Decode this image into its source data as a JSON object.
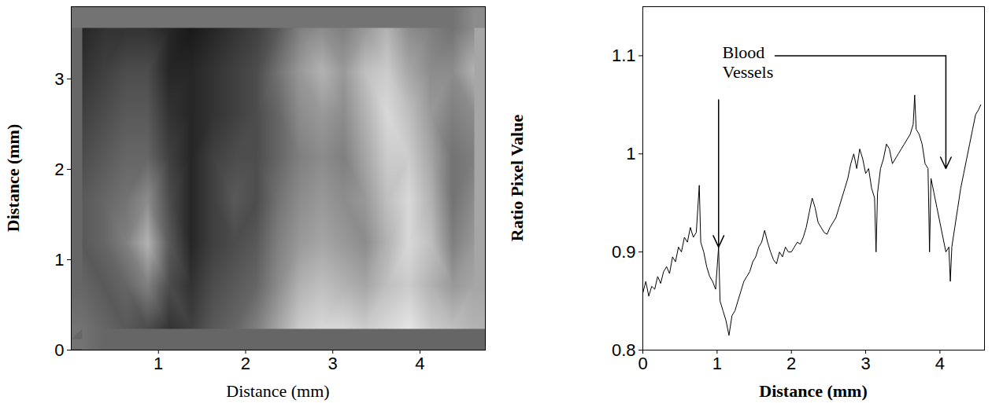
{
  "chart_data": [
    {
      "type": "heatmap",
      "xlabel": "Distance (mm)",
      "ylabel": "Distance (mm)",
      "xlim": [
        0,
        4.75
      ],
      "xticks": [
        1,
        2,
        3,
        4
      ],
      "ylim": [
        0,
        3.8
      ],
      "yticks": [
        0,
        1,
        2,
        3
      ],
      "zlim": [
        0,
        1
      ],
      "colors": [
        "#000000",
        "#ffffff"
      ],
      "x": [
        0.125,
        0.375,
        0.625,
        0.875,
        1.125,
        1.375,
        1.625,
        1.875,
        2.125,
        2.375,
        2.625,
        2.875,
        3.125,
        3.375,
        3.625,
        3.875,
        4.125,
        4.375,
        4.625
      ],
      "y": [
        0.2375,
        0.7125,
        1.1875,
        1.6625,
        2.1375,
        2.6125,
        3.0875,
        3.5625
      ],
      "z": [
        [
          0.45,
          0.4,
          0.35,
          0.3,
          0.2,
          0.25,
          0.35,
          0.4,
          0.5,
          0.65,
          0.8,
          0.85,
          0.85,
          0.8,
          0.85,
          0.9,
          0.8,
          0.75,
          0.7
        ],
        [
          0.4,
          0.35,
          0.4,
          0.5,
          0.3,
          0.2,
          0.3,
          0.35,
          0.4,
          0.55,
          0.7,
          0.75,
          0.7,
          0.65,
          0.75,
          0.8,
          0.7,
          0.6,
          0.65
        ],
        [
          0.35,
          0.4,
          0.5,
          0.7,
          0.35,
          0.15,
          0.25,
          0.3,
          0.35,
          0.5,
          0.6,
          0.65,
          0.6,
          0.55,
          0.7,
          0.85,
          0.75,
          0.5,
          0.6
        ],
        [
          0.35,
          0.4,
          0.45,
          0.55,
          0.3,
          0.15,
          0.25,
          0.35,
          0.3,
          0.45,
          0.55,
          0.6,
          0.55,
          0.6,
          0.75,
          0.85,
          0.7,
          0.45,
          0.55
        ],
        [
          0.3,
          0.35,
          0.4,
          0.4,
          0.25,
          0.15,
          0.25,
          0.3,
          0.3,
          0.4,
          0.5,
          0.55,
          0.5,
          0.65,
          0.8,
          0.8,
          0.65,
          0.45,
          0.5
        ],
        [
          0.25,
          0.3,
          0.35,
          0.35,
          0.2,
          0.15,
          0.2,
          0.25,
          0.3,
          0.4,
          0.55,
          0.6,
          0.55,
          0.7,
          0.85,
          0.75,
          0.6,
          0.5,
          0.55
        ],
        [
          0.2,
          0.25,
          0.3,
          0.3,
          0.15,
          0.15,
          0.2,
          0.25,
          0.3,
          0.45,
          0.6,
          0.7,
          0.6,
          0.75,
          0.8,
          0.65,
          0.55,
          0.55,
          0.7
        ],
        [
          0.15,
          0.2,
          0.2,
          0.2,
          0.15,
          0.1,
          0.15,
          0.2,
          0.25,
          0.35,
          0.5,
          0.55,
          0.5,
          0.6,
          0.7,
          0.55,
          0.5,
          0.45,
          0.55
        ]
      ]
    },
    {
      "type": "line",
      "xlabel": "Distance (mm)",
      "ylabel": "Ratio Pixel Value",
      "xlim": [
        0,
        4.6
      ],
      "xticks": [
        0,
        1,
        2,
        3,
        4
      ],
      "ylim": [
        0.8,
        1.15
      ],
      "yticks": [
        0.8,
        0.9,
        1,
        1.1
      ],
      "color": "#000000",
      "x": [
        0,
        0.04,
        0.08,
        0.12,
        0.16,
        0.2,
        0.24,
        0.28,
        0.32,
        0.36,
        0.4,
        0.44,
        0.48,
        0.52,
        0.56,
        0.6,
        0.64,
        0.68,
        0.72,
        0.76,
        0.78,
        0.82,
        0.86,
        0.9,
        0.94,
        0.98,
        1.02,
        1.04,
        1.08,
        1.12,
        1.16,
        1.2,
        1.24,
        1.28,
        1.32,
        1.36,
        1.4,
        1.44,
        1.48,
        1.52,
        1.56,
        1.6,
        1.64,
        1.68,
        1.72,
        1.76,
        1.8,
        1.84,
        1.88,
        1.92,
        1.96,
        2.0,
        2.04,
        2.08,
        2.12,
        2.16,
        2.2,
        2.24,
        2.28,
        2.32,
        2.36,
        2.4,
        2.44,
        2.48,
        2.52,
        2.56,
        2.6,
        2.64,
        2.68,
        2.72,
        2.76,
        2.8,
        2.84,
        2.88,
        2.92,
        2.96,
        3.0,
        3.04,
        3.08,
        3.12,
        3.14,
        3.16,
        3.2,
        3.24,
        3.28,
        3.32,
        3.36,
        3.4,
        3.44,
        3.48,
        3.52,
        3.56,
        3.6,
        3.64,
        3.66,
        3.68,
        3.72,
        3.76,
        3.8,
        3.84,
        3.86,
        3.88,
        3.92,
        3.96,
        4.0,
        4.04,
        4.08,
        4.12,
        4.14,
        4.16,
        4.2,
        4.24,
        4.28,
        4.32,
        4.36,
        4.4,
        4.44,
        4.48,
        4.52,
        4.55
      ],
      "values": [
        0.858,
        0.87,
        0.855,
        0.865,
        0.862,
        0.875,
        0.868,
        0.88,
        0.885,
        0.878,
        0.895,
        0.89,
        0.905,
        0.9,
        0.915,
        0.91,
        0.925,
        0.915,
        0.92,
        0.968,
        0.91,
        0.9,
        0.885,
        0.875,
        0.87,
        0.862,
        0.905,
        0.85,
        0.84,
        0.83,
        0.815,
        0.835,
        0.84,
        0.85,
        0.86,
        0.87,
        0.875,
        0.88,
        0.89,
        0.895,
        0.905,
        0.91,
        0.922,
        0.91,
        0.9,
        0.892,
        0.888,
        0.9,
        0.895,
        0.905,
        0.9,
        0.9,
        0.905,
        0.91,
        0.908,
        0.915,
        0.925,
        0.94,
        0.955,
        0.945,
        0.93,
        0.925,
        0.92,
        0.918,
        0.925,
        0.93,
        0.935,
        0.945,
        0.955,
        0.965,
        0.975,
        0.99,
        1.0,
        0.985,
        1.005,
        0.995,
        0.98,
        0.985,
        0.965,
        0.955,
        0.9,
        0.96,
        0.985,
        0.995,
        1.01,
        1.005,
        0.99,
        0.995,
        1.0,
        1.005,
        1.01,
        1.015,
        1.02,
        1.03,
        1.06,
        1.025,
        1.02,
        1.01,
        0.99,
        0.985,
        0.9,
        0.975,
        0.96,
        0.945,
        0.93,
        0.915,
        0.9,
        0.905,
        0.87,
        0.905,
        0.925,
        0.945,
        0.965,
        0.98,
        0.995,
        1.01,
        1.025,
        1.04,
        1.045,
        1.05
      ],
      "annotations": [
        {
          "text": "Blood Vessels",
          "x": 1.07,
          "y": 1.112,
          "arrows": [
            [
              [
                1.02,
                1.055
              ],
              [
                1.02,
                0.905
              ]
            ],
            [
              [
                1.78,
                1.1
              ],
              [
                4.08,
                1.1
              ],
              [
                4.08,
                0.985
              ]
            ]
          ]
        }
      ]
    }
  ]
}
